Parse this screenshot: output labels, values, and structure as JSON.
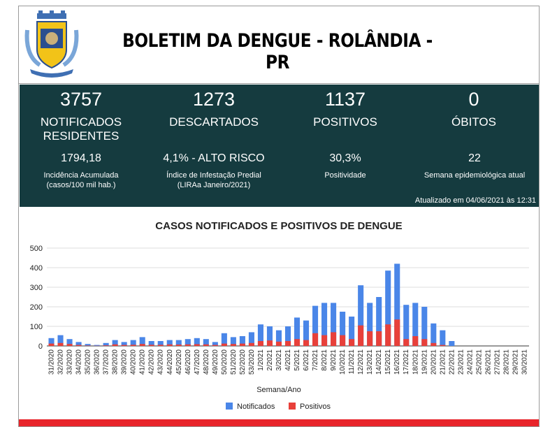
{
  "header": {
    "title": "BOLETIM DA DENGUE - ROLÂNDIA - PR"
  },
  "stats": [
    {
      "value": "3757",
      "label_line1": "NOTIFICADOS",
      "label_line2": "RESIDENTES"
    },
    {
      "value": "1273",
      "label_line1": "DESCARTADOS",
      "label_line2": ""
    },
    {
      "value": "1137",
      "label_line1": "POSITIVOS",
      "label_line2": ""
    },
    {
      "value": "0",
      "label_line1": "ÓBITOS",
      "label_line2": ""
    }
  ],
  "substats": [
    {
      "value": "1794,18",
      "caption_line1": "Incidência Acumulada",
      "caption_line2": "(casos/100 mil hab.)"
    },
    {
      "value": "4,1% - ALTO RISCO",
      "caption_line1": "Índice de Infestação Predial",
      "caption_line2": "(LIRAa Janeiro/2021)"
    },
    {
      "value": "30,3%",
      "caption_line1": "Positividade",
      "caption_line2": ""
    },
    {
      "value": "22",
      "caption_line1": "Semana epidemiológica atual",
      "caption_line2": ""
    }
  ],
  "updated": "Atualizado em 04/06/2021 às 12:31",
  "colors": {
    "panel": "#153b3f",
    "notificados": "#4a86e8",
    "positivos": "#e8403a",
    "bottom_bar": "#e8242a"
  },
  "chart_data": {
    "type": "bar",
    "title": "CASOS NOTIFICADOS E POSITIVOS DE DENGUE",
    "xlabel": "Semana/Ano",
    "ylabel": "",
    "ylim": [
      0,
      500
    ],
    "yticks": [
      0,
      100,
      200,
      300,
      400,
      500
    ],
    "grid": true,
    "legend_position": "bottom",
    "categories": [
      "31/2020",
      "32/2020",
      "33/2020",
      "34/2020",
      "35/2020",
      "36/2020",
      "37/2020",
      "38/2020",
      "39/2020",
      "40/2020",
      "41/2020",
      "42/2020",
      "43/2020",
      "44/2020",
      "45/2020",
      "46/2020",
      "47/2020",
      "48/2020",
      "49/2020",
      "50/2020",
      "51/2020",
      "52/2020",
      "53/2020",
      "1/2021",
      "2/2021",
      "3/2021",
      "4/2021",
      "5/2021",
      "6/2021",
      "7/2021",
      "8/2021",
      "9/2021",
      "10/2021",
      "11/2021",
      "12/2021",
      "13/2021",
      "14/2021",
      "15/2021",
      "16/2021",
      "17/2021",
      "18/2021",
      "19/2021",
      "20/2021",
      "21/2021",
      "22/2021",
      "23/2021",
      "24/2021",
      "25/2021",
      "26/2021",
      "27/2021",
      "28/2021",
      "29/2021",
      "30/2021"
    ],
    "series": [
      {
        "name": "Notificados",
        "values": [
          40,
          55,
          35,
          20,
          10,
          5,
          15,
          30,
          20,
          30,
          45,
          25,
          25,
          30,
          30,
          35,
          40,
          35,
          20,
          65,
          45,
          50,
          70,
          110,
          100,
          80,
          100,
          145,
          130,
          205,
          220,
          220,
          175,
          150,
          310,
          220,
          250,
          385,
          420,
          210,
          220,
          200,
          115,
          80,
          25,
          0,
          0,
          0,
          0,
          0,
          0,
          0,
          0
        ]
      },
      {
        "name": "Positivos",
        "values": [
          12,
          15,
          10,
          5,
          2,
          1,
          3,
          8,
          5,
          6,
          10,
          6,
          6,
          8,
          7,
          8,
          9,
          8,
          5,
          12,
          10,
          12,
          15,
          25,
          28,
          22,
          25,
          35,
          30,
          65,
          55,
          70,
          55,
          35,
          105,
          75,
          75,
          110,
          135,
          35,
          50,
          35,
          15,
          5,
          0,
          0,
          0,
          0,
          0,
          0,
          0,
          0,
          0
        ]
      }
    ]
  }
}
